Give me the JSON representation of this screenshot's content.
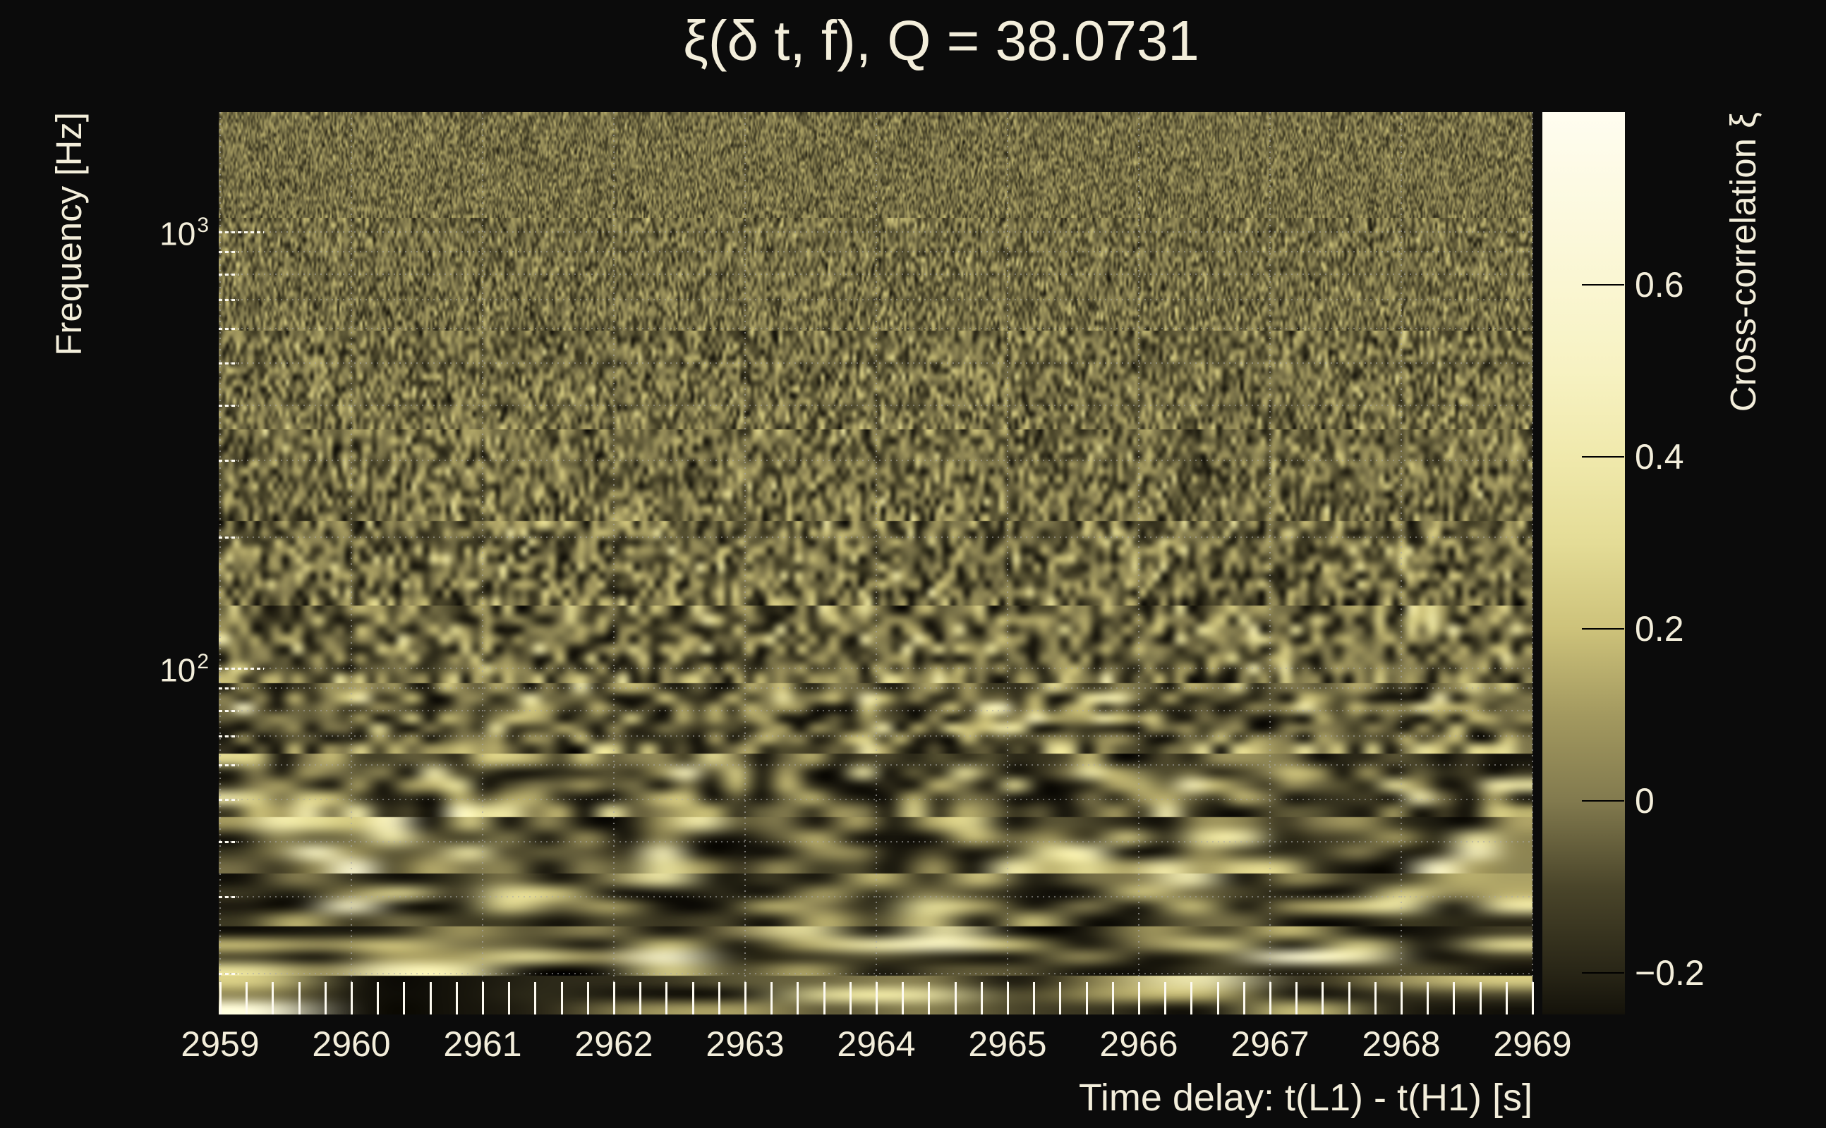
{
  "figure": {
    "background_color": "#0b0b0b",
    "text_color": "#f3eedb"
  },
  "chart_data": {
    "type": "heatmap",
    "title": "ξ(δ t, f), Q = 38.0731",
    "xlabel": "Time delay: t(L1) - t(H1) [s]",
    "ylabel": "Frequency [Hz]",
    "x_range": [
      2959,
      2969
    ],
    "x_major_ticks": [
      "2959",
      "2960",
      "2961",
      "2962",
      "2963",
      "2964",
      "2965",
      "2966",
      "2967",
      "2968",
      "2969"
    ],
    "x_minor_tick_step_s": 0.2,
    "y_scale": "log",
    "y_range_hz": [
      16,
      1880
    ],
    "y_major_ticks": [
      {
        "hz": 1000,
        "base": "10",
        "exponent": "3"
      },
      {
        "hz": 100,
        "base": "10",
        "exponent": "2"
      }
    ],
    "y_minor_ticks_hz": [
      900,
      800,
      700,
      600,
      500,
      400,
      300,
      200,
      90,
      80,
      70,
      60,
      50,
      40,
      30,
      20
    ],
    "grid": "dotted gray at every x second and every y tick",
    "legend_position": "right colorbar",
    "colorbar": {
      "label": "Cross-correlation ξ",
      "range": [
        -0.248,
        0.801
      ],
      "ticks": [
        {
          "label": "0.6",
          "value": 0.6
        },
        {
          "label": "0.4",
          "value": 0.4
        },
        {
          "label": "0.2",
          "value": 0.2
        },
        {
          "label": "0",
          "value": 0
        },
        {
          "label": "−0.2",
          "value": -0.2
        }
      ]
    },
    "colormap_stops": [
      {
        "v": -0.25,
        "color": [
          20,
          18,
          10
        ]
      },
      {
        "v": -0.2,
        "color": [
          40,
          37,
          22
        ]
      },
      {
        "v": -0.1,
        "color": [
          74,
          69,
          42
        ]
      },
      {
        "v": 0.0,
        "color": [
          130,
          122,
          78
        ]
      },
      {
        "v": 0.1,
        "color": [
          163,
          153,
          95
        ]
      },
      {
        "v": 0.2,
        "color": [
          205,
          194,
          122
        ]
      },
      {
        "v": 0.3,
        "color": [
          228,
          220,
          150
        ]
      },
      {
        "v": 0.4,
        "color": [
          240,
          233,
          172
        ]
      },
      {
        "v": 0.5,
        "color": [
          247,
          242,
          194
        ]
      },
      {
        "v": 0.6,
        "color": [
          250,
          246,
          210
        ]
      },
      {
        "v": 0.8,
        "color": [
          255,
          253,
          240
        ]
      }
    ],
    "content_description": "Noisy constant-Q cross-correlation spectrogram: fine-grained olive noise at high frequencies transitioning to large smooth bright cream horizontal streaks below ~100 Hz"
  }
}
